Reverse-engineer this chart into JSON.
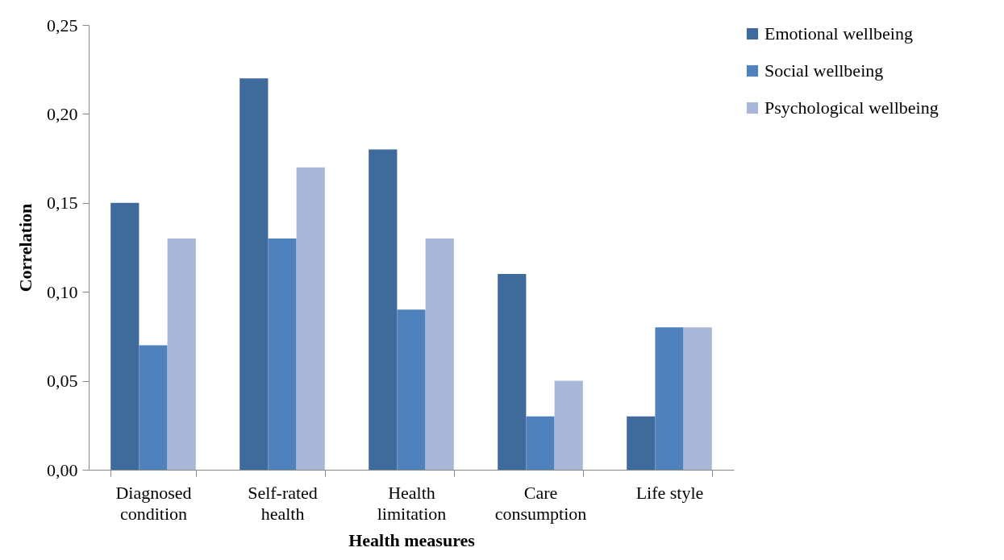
{
  "chart_data": {
    "type": "bar",
    "xlabel": "Health measures",
    "ylabel": "Correlation",
    "categories": [
      "Diagnosed\ncondition",
      "Self-rated\nhealth",
      "Health\nlimitation",
      "Care\nconsumption",
      "Life style"
    ],
    "series": [
      {
        "name": "Emotional wellbeing",
        "color": "#3f6a9c",
        "values": [
          0.15,
          0.22,
          0.18,
          0.11,
          0.03
        ]
      },
      {
        "name": "Social wellbeing",
        "color": "#4f81bd",
        "values": [
          0.07,
          0.13,
          0.09,
          0.03,
          0.08
        ]
      },
      {
        "name": "Psychological wellbeing",
        "color": "#a9b8d8",
        "values": [
          0.13,
          0.17,
          0.13,
          0.05,
          0.08
        ]
      }
    ],
    "ylim": [
      0,
      0.25
    ],
    "yticks": [
      {
        "value": 0,
        "label": "0,00"
      },
      {
        "value": 0.05,
        "label": "0,05"
      },
      {
        "value": 0.1,
        "label": "0,10"
      },
      {
        "value": 0.15,
        "label": "0,15"
      },
      {
        "value": 0.2,
        "label": "0,20"
      },
      {
        "value": 0.25,
        "label": "0,25"
      }
    ],
    "grid": false,
    "legend": "top right"
  }
}
